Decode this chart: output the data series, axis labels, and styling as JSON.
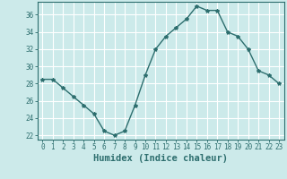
{
  "x": [
    0,
    1,
    2,
    3,
    4,
    5,
    6,
    7,
    8,
    9,
    10,
    11,
    12,
    13,
    14,
    15,
    16,
    17,
    18,
    19,
    20,
    21,
    22,
    23
  ],
  "y": [
    28.5,
    28.5,
    27.5,
    26.5,
    25.5,
    24.5,
    22.5,
    22.0,
    22.5,
    25.5,
    29.0,
    32.0,
    33.5,
    34.5,
    35.5,
    37.0,
    36.5,
    36.5,
    34.0,
    33.5,
    32.0,
    29.5,
    29.0,
    28.0
  ],
  "line_color": "#2d6e6e",
  "marker": "*",
  "marker_size": 3,
  "bg_color": "#cceaea",
  "grid_color": "#ffffff",
  "xlabel": "Humidex (Indice chaleur)",
  "ylim": [
    21.5,
    37.5
  ],
  "yticks": [
    22,
    24,
    26,
    28,
    30,
    32,
    34,
    36
  ],
  "xticks": [
    0,
    1,
    2,
    3,
    4,
    5,
    6,
    7,
    8,
    9,
    10,
    11,
    12,
    13,
    14,
    15,
    16,
    17,
    18,
    19,
    20,
    21,
    22,
    23
  ],
  "axis_color": "#2d6e6e",
  "tick_color": "#2d6e6e",
  "label_fontsize": 5.5,
  "xlabel_fontsize": 7.5
}
